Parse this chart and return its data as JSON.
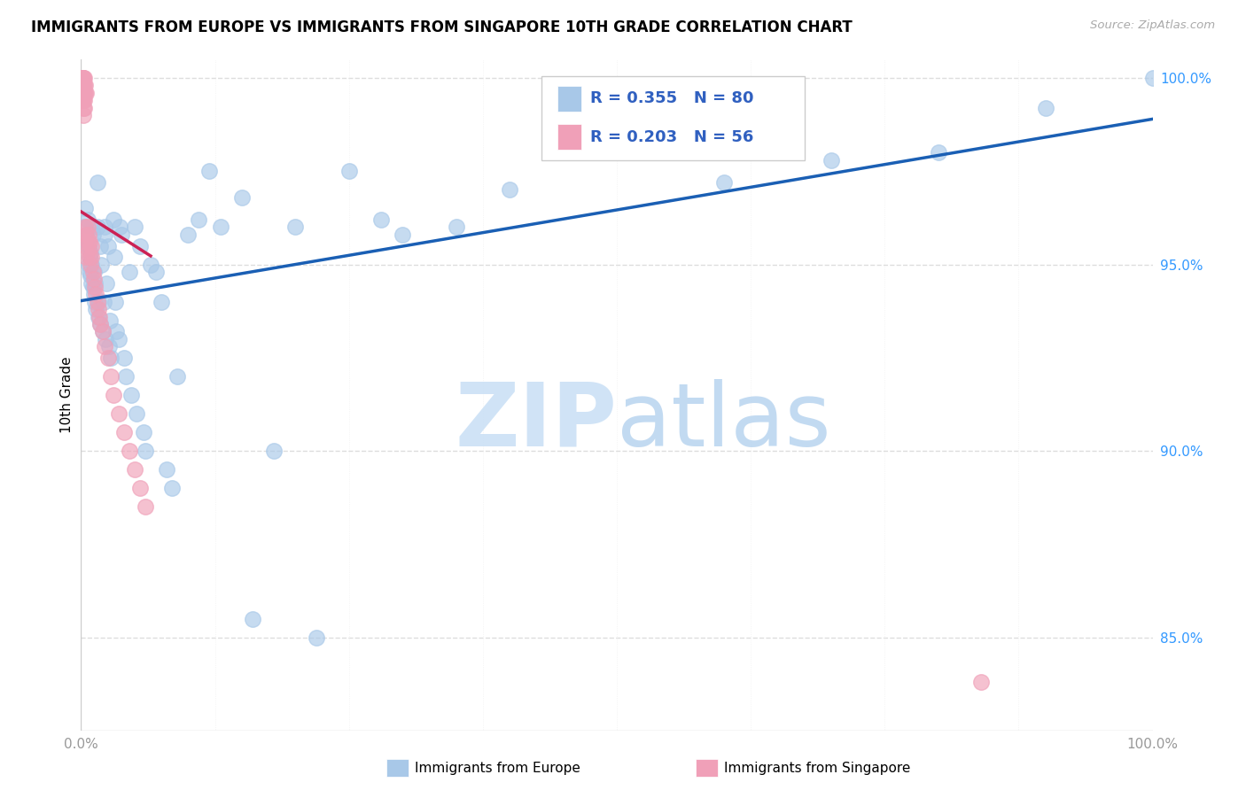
{
  "title": "IMMIGRANTS FROM EUROPE VS IMMIGRANTS FROM SINGAPORE 10TH GRADE CORRELATION CHART",
  "source": "Source: ZipAtlas.com",
  "xlabel_blue": "Immigrants from Europe",
  "xlabel_pink": "Immigrants from Singapore",
  "ylabel": "10th Grade",
  "r_blue": 0.355,
  "n_blue": 80,
  "r_pink": 0.203,
  "n_pink": 56,
  "color_blue": "#a8c8e8",
  "color_pink": "#f0a0b8",
  "line_blue": "#1a5fb4",
  "line_pink": "#cc2255",
  "watermark_color": "#ddeeff",
  "blue_x": [
    0.003,
    0.004,
    0.005,
    0.006,
    0.006,
    0.007,
    0.007,
    0.008,
    0.008,
    0.009,
    0.009,
    0.01,
    0.01,
    0.01,
    0.011,
    0.011,
    0.012,
    0.012,
    0.013,
    0.013,
    0.014,
    0.015,
    0.015,
    0.016,
    0.016,
    0.018,
    0.018,
    0.019,
    0.02,
    0.021,
    0.022,
    0.022,
    0.023,
    0.024,
    0.025,
    0.026,
    0.027,
    0.028,
    0.03,
    0.031,
    0.032,
    0.033,
    0.035,
    0.036,
    0.038,
    0.04,
    0.042,
    0.045,
    0.047,
    0.05,
    0.052,
    0.055,
    0.058,
    0.06,
    0.065,
    0.07,
    0.075,
    0.08,
    0.085,
    0.09,
    0.1,
    0.11,
    0.12,
    0.13,
    0.15,
    0.16,
    0.18,
    0.2,
    0.22,
    0.25,
    0.28,
    0.3,
    0.35,
    0.4,
    0.5,
    0.6,
    0.7,
    0.8,
    0.9,
    1.0
  ],
  "blue_y": [
    0.96,
    0.965,
    0.958,
    0.956,
    0.962,
    0.95,
    0.955,
    0.948,
    0.952,
    0.947,
    0.953,
    0.945,
    0.95,
    0.96,
    0.944,
    0.958,
    0.942,
    0.948,
    0.94,
    0.945,
    0.938,
    0.972,
    0.96,
    0.936,
    0.94,
    0.934,
    0.955,
    0.95,
    0.932,
    0.94,
    0.96,
    0.958,
    0.93,
    0.945,
    0.955,
    0.928,
    0.935,
    0.925,
    0.962,
    0.952,
    0.94,
    0.932,
    0.93,
    0.96,
    0.958,
    0.925,
    0.92,
    0.948,
    0.915,
    0.96,
    0.91,
    0.955,
    0.905,
    0.9,
    0.95,
    0.948,
    0.94,
    0.895,
    0.89,
    0.92,
    0.958,
    0.962,
    0.975,
    0.96,
    0.968,
    0.855,
    0.9,
    0.96,
    0.85,
    0.975,
    0.962,
    0.958,
    0.96,
    0.97,
    0.985,
    0.972,
    0.978,
    0.98,
    0.992,
    1.0
  ],
  "pink_x": [
    0.001,
    0.001,
    0.001,
    0.001,
    0.001,
    0.001,
    0.001,
    0.001,
    0.002,
    0.002,
    0.002,
    0.002,
    0.002,
    0.002,
    0.002,
    0.003,
    0.003,
    0.003,
    0.003,
    0.003,
    0.003,
    0.004,
    0.004,
    0.004,
    0.005,
    0.005,
    0.005,
    0.006,
    0.006,
    0.007,
    0.007,
    0.008,
    0.008,
    0.009,
    0.01,
    0.01,
    0.011,
    0.012,
    0.013,
    0.014,
    0.015,
    0.016,
    0.017,
    0.018,
    0.02,
    0.022,
    0.025,
    0.028,
    0.03,
    0.035,
    0.04,
    0.045,
    0.05,
    0.055,
    0.06,
    0.84
  ],
  "pink_y": [
    1.0,
    1.0,
    1.0,
    1.0,
    1.0,
    0.998,
    0.996,
    0.994,
    1.0,
    1.0,
    0.998,
    0.996,
    0.994,
    0.992,
    0.99,
    1.0,
    0.998,
    0.996,
    0.994,
    0.992,
    0.956,
    0.998,
    0.996,
    0.96,
    0.996,
    0.958,
    0.952,
    0.96,
    0.956,
    0.958,
    0.954,
    0.956,
    0.952,
    0.95,
    0.955,
    0.952,
    0.948,
    0.946,
    0.944,
    0.942,
    0.94,
    0.938,
    0.936,
    0.934,
    0.932,
    0.928,
    0.925,
    0.92,
    0.915,
    0.91,
    0.905,
    0.9,
    0.895,
    0.89,
    0.885,
    0.838
  ],
  "xlim": [
    0.0,
    1.0
  ],
  "ylim": [
    0.825,
    1.005
  ],
  "y_ticks": [
    0.85,
    0.9,
    0.95,
    1.0
  ],
  "blue_line_x_start": 0.0,
  "blue_line_x_end": 1.0,
  "pink_line_x_start": 0.0,
  "pink_line_x_end": 0.065,
  "title_fontsize": 12,
  "axis_tick_color": "#999999",
  "right_tick_color": "#3399ff",
  "grid_color": "#dddddd",
  "spine_color": "#cccccc"
}
